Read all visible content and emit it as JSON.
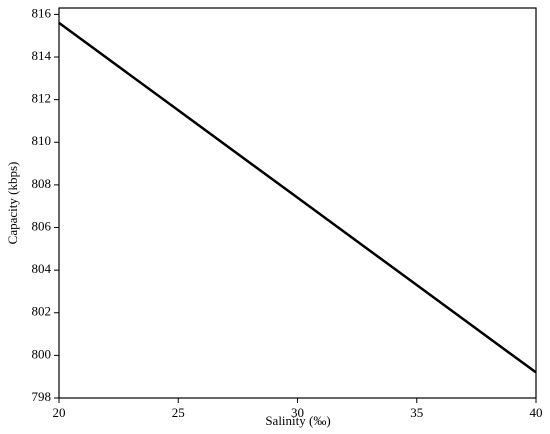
{
  "chart_data": {
    "type": "line",
    "x_label": "Salinity (‰)",
    "y_label": "Capacity (kbps)",
    "x": [
      20,
      25,
      30,
      35,
      40
    ],
    "series": [
      {
        "name": "Capacity",
        "color": "#000000",
        "values": [
          815.6,
          811.5,
          807.4,
          803.3,
          799.2
        ]
      }
    ],
    "xlim": [
      20,
      40
    ],
    "xticks": [
      20,
      25,
      30,
      35,
      40
    ],
    "ylim": [
      798,
      816.3
    ],
    "yticks": [
      798,
      800,
      802,
      804,
      806,
      808,
      810,
      812,
      814,
      816
    ],
    "grid": false
  }
}
